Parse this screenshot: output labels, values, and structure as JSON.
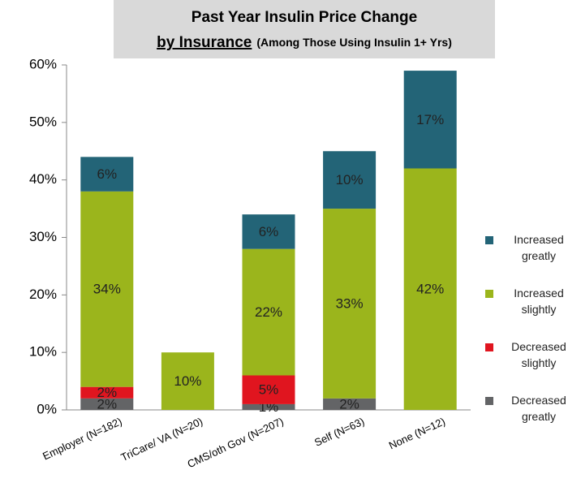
{
  "chart_data": {
    "type": "stacked_bar",
    "title_line1": "Past Year Insulin Price Change",
    "title_line2_main": "by Insurance",
    "title_line2_note": "(Among Those Using Insulin 1+ Yrs)",
    "categories": [
      "Employer (N=182)",
      "TriCare/ VA (N=20)",
      "CMS/oth Gov (N=207)",
      "Self (N=63)",
      "None (N=12)"
    ],
    "series": [
      {
        "name": "Decreased greatly",
        "color": "#636466",
        "values": [
          2,
          0,
          1,
          2,
          0
        ],
        "value_labels": [
          "2%",
          null,
          "1%",
          "2%",
          null
        ]
      },
      {
        "name": "Decreased slightly",
        "color": "#e0151f",
        "values": [
          2,
          0,
          5,
          0,
          0
        ],
        "value_labels": [
          "2%",
          null,
          "5%",
          null,
          null
        ]
      },
      {
        "name": "Increased slightly",
        "color": "#9bb51c",
        "values": [
          34,
          10,
          22,
          33,
          42
        ],
        "value_labels": [
          "34%",
          "10%",
          "22%",
          "33%",
          "42%"
        ]
      },
      {
        "name": "Increased greatly",
        "color": "#236477",
        "values": [
          6,
          0,
          6,
          10,
          17
        ],
        "value_labels": [
          "6%",
          null,
          "6%",
          "10%",
          "17%"
        ]
      }
    ],
    "ylim": [
      0,
      60
    ],
    "yticks": [
      {
        "value": 0,
        "label": "0%"
      },
      {
        "value": 10,
        "label": "10%"
      },
      {
        "value": 20,
        "label": "20%"
      },
      {
        "value": 30,
        "label": "30%"
      },
      {
        "value": 40,
        "label": "40%"
      },
      {
        "value": 50,
        "label": "50%"
      },
      {
        "value": 60,
        "label": "60%"
      }
    ],
    "legend": "right"
  }
}
